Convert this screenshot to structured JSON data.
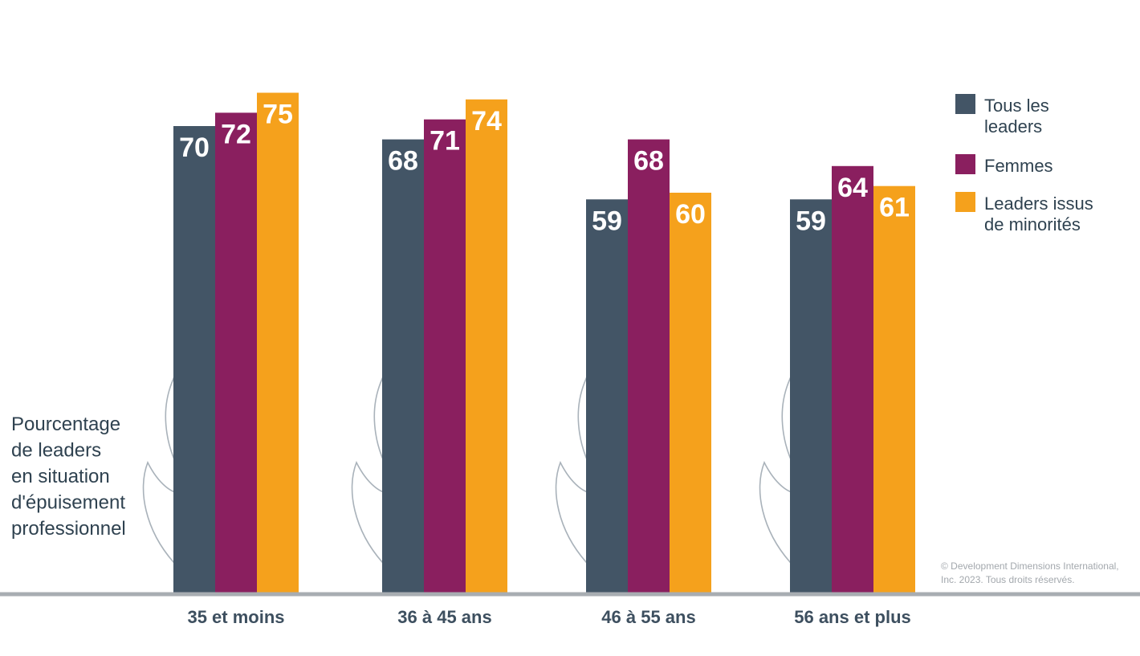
{
  "chart_data": {
    "type": "bar",
    "categories": [
      "35 et moins",
      "36 à 45 ans",
      "46 à 55 ans",
      "56 ans et plus"
    ],
    "series": [
      {
        "name": "Tous les leaders",
        "values": [
          70,
          68,
          59,
          59
        ],
        "color": "#435566"
      },
      {
        "name": "Femmes",
        "values": [
          72,
          71,
          68,
          64
        ],
        "color": "#8a1f5f"
      },
      {
        "name": "Leaders issus de minorités",
        "values": [
          75,
          74,
          60,
          61
        ],
        "color": "#f5a11c"
      }
    ],
    "ylabel": "Pourcentage de leaders en situation d'épuisement professionnel",
    "ylim": [
      0,
      75
    ],
    "grid": false,
    "legend_position": "right",
    "legend": [
      {
        "lines": [
          "Tous les",
          "leaders"
        ],
        "color": "#435566"
      },
      {
        "lines": [
          "Femmes"
        ],
        "color": "#8a1f5f"
      },
      {
        "lines": [
          "Leaders issus",
          "de minorités"
        ],
        "color": "#f5a11c"
      }
    ],
    "ylabel_lines": [
      "Pourcentage",
      "de leaders",
      "en situation",
      "d'épuisement",
      "professionnel"
    ],
    "copyright_lines": [
      "© Development Dimensions International,",
      "Inc. 2023. Tous droits réservés."
    ],
    "baseline_color": "#a8adb2",
    "decoration": "flame-outline-icon"
  }
}
